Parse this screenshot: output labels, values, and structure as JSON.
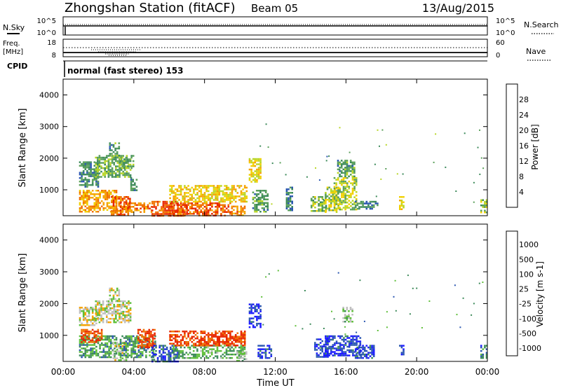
{
  "header": {
    "station_title": "Zhongshan Station (fitACF)",
    "beam": "Beam 05",
    "date": "13/Aug/2015"
  },
  "top_panels": {
    "nsky": {
      "label": "N.Sky",
      "ticks_left": [
        "10^5",
        "10^0"
      ],
      "ticks_right": [
        "10^5",
        "10^0"
      ],
      "right_label": "N.Search"
    },
    "freq": {
      "label_line1": "Freq.",
      "label_line2": "[MHz]",
      "ticks_left": [
        "18",
        "8"
      ],
      "ticks_right": [
        "60",
        "0"
      ],
      "right_label": "Nave"
    },
    "cpid": {
      "label": "CPID",
      "text": "normal (fast stereo) 153"
    }
  },
  "chart_data": [
    {
      "type": "heatmap",
      "panel": "power",
      "ylabel": "Slant Range [km]",
      "y_ticks": [
        1000,
        2000,
        3000,
        4000
      ],
      "ylim": [
        180,
        4500
      ],
      "xlim_hours": [
        0,
        24
      ],
      "colorbar": {
        "label": "Power [dB]",
        "ticks": [
          4,
          8,
          12,
          16,
          20,
          24,
          28
        ],
        "range": [
          0,
          32
        ],
        "colors": [
          "#1a1aff",
          "#2a56b0",
          "#3d8a5a",
          "#5aa05a",
          "#b8d626",
          "#f0d000",
          "#f5a200",
          "#f07000",
          "#e82800"
        ]
      },
      "regions": [
        {
          "t": [
            0.9,
            3.0
          ],
          "r": [
            300,
            1000
          ],
          "level": 0.72
        },
        {
          "t": [
            2.7,
            3.8
          ],
          "r": [
            200,
            800
          ],
          "level": 0.85
        },
        {
          "t": [
            3.2,
            5.0
          ],
          "r": [
            300,
            600
          ],
          "level": 0.8
        },
        {
          "t": [
            5.0,
            7.0
          ],
          "r": [
            200,
            650
          ],
          "level": 0.9
        },
        {
          "t": [
            6.0,
            9.5
          ],
          "r": [
            200,
            600
          ],
          "level": 0.88
        },
        {
          "t": [
            6.0,
            10.4
          ],
          "r": [
            600,
            1150
          ],
          "level": 0.62
        },
        {
          "t": [
            9.5,
            10.3
          ],
          "r": [
            200,
            500
          ],
          "level": 0.78
        },
        {
          "t": [
            0.9,
            2.0
          ],
          "r": [
            1100,
            1900
          ],
          "level": 0.3
        },
        {
          "t": [
            1.8,
            3.8
          ],
          "r": [
            1400,
            2100
          ],
          "level": 0.4
        },
        {
          "t": [
            2.6,
            3.2
          ],
          "r": [
            2100,
            2500
          ],
          "level": 0.35
        },
        {
          "t": [
            3.2,
            4.0
          ],
          "r": [
            1700,
            2100
          ],
          "level": 0.38
        },
        {
          "t": [
            3.8,
            4.2
          ],
          "r": [
            1000,
            1400
          ],
          "level": 0.3
        },
        {
          "t": [
            10.5,
            11.2
          ],
          "r": [
            1250,
            2000
          ],
          "level": 0.6
        },
        {
          "t": [
            10.7,
            11.6
          ],
          "r": [
            300,
            1000
          ],
          "level": 0.35
        },
        {
          "t": [
            12.6,
            13.0
          ],
          "r": [
            350,
            1100
          ],
          "level": 0.25
        },
        {
          "t": [
            14.0,
            14.9
          ],
          "r": [
            350,
            800
          ],
          "level": 0.45
        },
        {
          "t": [
            14.8,
            15.6
          ],
          "r": [
            300,
            1100
          ],
          "level": 0.52
        },
        {
          "t": [
            15.3,
            16.6
          ],
          "r": [
            400,
            1400
          ],
          "level": 0.5
        },
        {
          "t": [
            15.5,
            16.5
          ],
          "r": [
            1400,
            1950
          ],
          "level": 0.35
        },
        {
          "t": [
            16.5,
            17.8
          ],
          "r": [
            400,
            650
          ],
          "level": 0.3
        },
        {
          "t": [
            19.0,
            19.3
          ],
          "r": [
            400,
            800
          ],
          "level": 0.55
        },
        {
          "t": [
            23.6,
            24.0
          ],
          "r": [
            300,
            700
          ],
          "level": 0.45
        }
      ]
    },
    {
      "type": "heatmap",
      "panel": "velocity",
      "ylabel": "Slant Range [km]",
      "y_ticks": [
        1000,
        2000,
        3000,
        4000
      ],
      "ylim": [
        180,
        4500
      ],
      "xlim_hours": [
        0,
        24
      ],
      "xlabel": "Time UT",
      "x_ticks": [
        "00:00",
        "04:00",
        "08:00",
        "12:00",
        "16:00",
        "20:00",
        "00:00"
      ],
      "colorbar": {
        "label": "Velocity [m s-1]",
        "ticks": [
          "1000",
          "500",
          "100",
          "25",
          "-25",
          "-100",
          "-500",
          "-1000"
        ],
        "colors": [
          "#1a1aff",
          "#2a56b0",
          "#3d8a5a",
          "#5fbf3a",
          "#c0c0c0",
          "#f5a200",
          "#f07000",
          "#e82800"
        ]
      },
      "regions": [
        {
          "t": [
            0.9,
            3.0
          ],
          "r": [
            300,
            1000
          ],
          "level": 0.36
        },
        {
          "t": [
            1.0,
            2.2
          ],
          "r": [
            800,
            1200
          ],
          "level": 0.9
        },
        {
          "t": [
            2.8,
            3.6
          ],
          "r": [
            200,
            800
          ],
          "level": 0.6
        },
        {
          "t": [
            3.2,
            5.2
          ],
          "r": [
            300,
            1000
          ],
          "level": 0.33
        },
        {
          "t": [
            4.2,
            5.2
          ],
          "r": [
            600,
            1200
          ],
          "level": 0.92
        },
        {
          "t": [
            5.0,
            6.5
          ],
          "r": [
            200,
            700
          ],
          "level": 0.18
        },
        {
          "t": [
            6.2,
            10.3
          ],
          "r": [
            300,
            700
          ],
          "level": 0.4
        },
        {
          "t": [
            6.0,
            10.3
          ],
          "r": [
            700,
            1150
          ],
          "level": 0.9
        },
        {
          "t": [
            9.8,
            10.4
          ],
          "r": [
            200,
            500
          ],
          "level": 0.45
        },
        {
          "t": [
            0.9,
            2.0
          ],
          "r": [
            1300,
            1900
          ],
          "level": 0.55
        },
        {
          "t": [
            1.8,
            3.8
          ],
          "r": [
            1400,
            2100
          ],
          "level": 0.55
        },
        {
          "t": [
            2.6,
            3.2
          ],
          "r": [
            2100,
            2500
          ],
          "level": 0.55
        },
        {
          "t": [
            10.5,
            11.2
          ],
          "r": [
            1250,
            2000
          ],
          "level": 0.12
        },
        {
          "t": [
            11.0,
            11.8
          ],
          "r": [
            300,
            700
          ],
          "level": 0.12
        },
        {
          "t": [
            14.2,
            15.0
          ],
          "r": [
            300,
            900
          ],
          "level": 0.12
        },
        {
          "t": [
            14.8,
            16.8
          ],
          "r": [
            350,
            1000
          ],
          "level": 0.13
        },
        {
          "t": [
            15.8,
            16.4
          ],
          "r": [
            1450,
            1900
          ],
          "level": 0.5
        },
        {
          "t": [
            16.5,
            17.6
          ],
          "r": [
            300,
            700
          ],
          "level": 0.14
        },
        {
          "t": [
            19.0,
            19.3
          ],
          "r": [
            400,
            700
          ],
          "level": 0.12
        },
        {
          "t": [
            23.6,
            24.0
          ],
          "r": [
            300,
            700
          ],
          "level": 0.25
        }
      ]
    }
  ]
}
